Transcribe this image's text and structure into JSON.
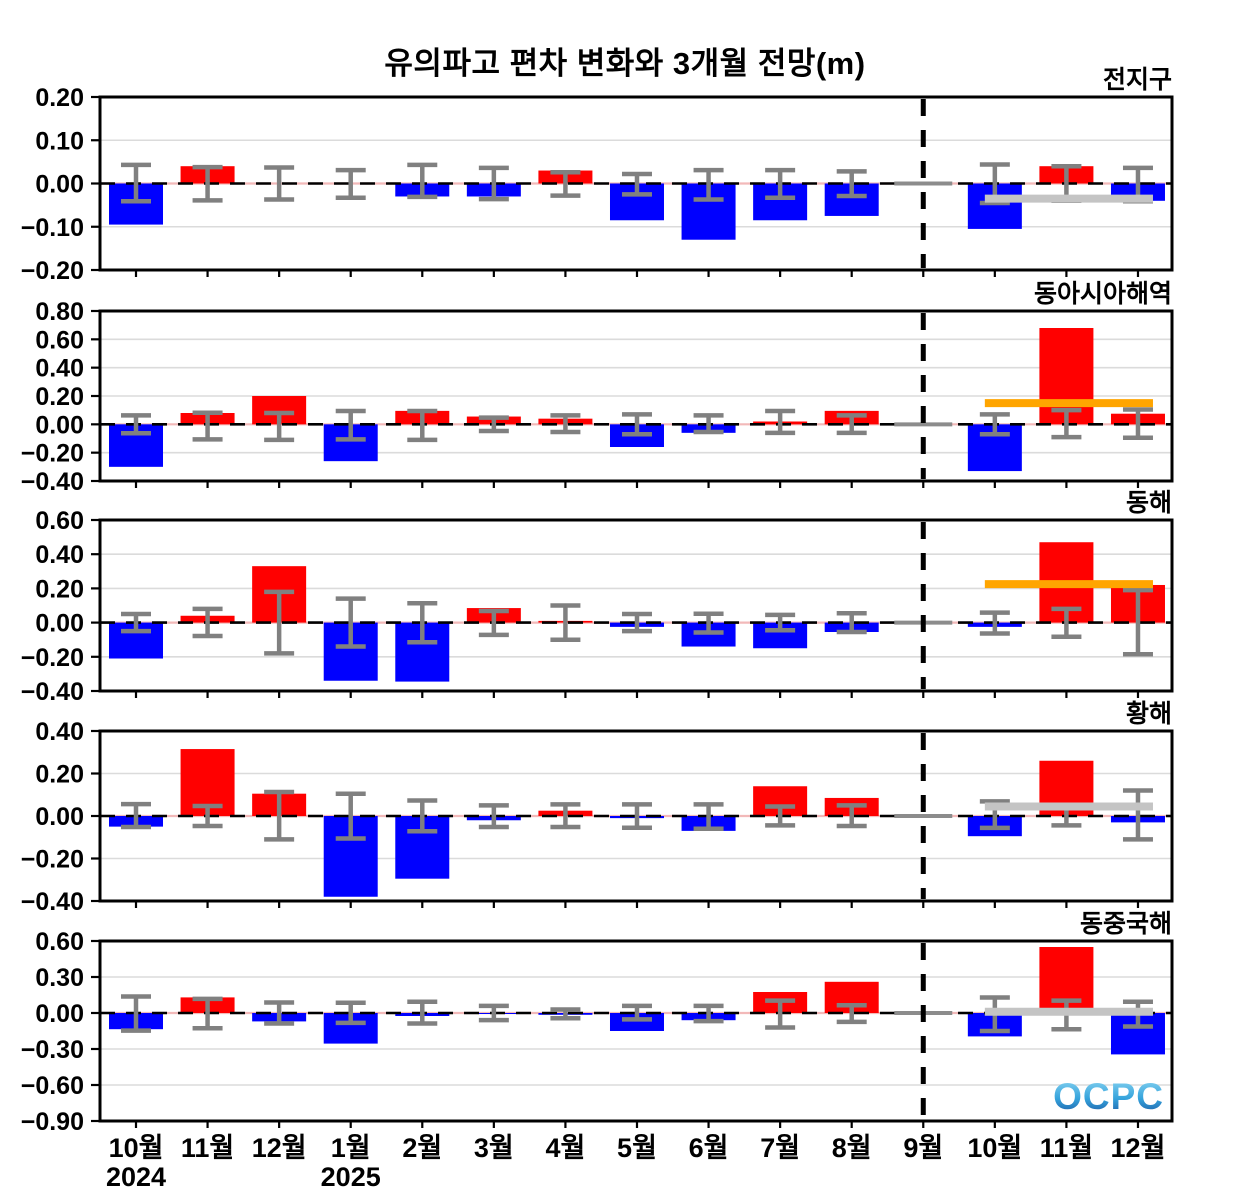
{
  "title": "유의파고 편차 변화와 3개월 전망(m)",
  "logo_text": "OCPC",
  "colors": {
    "positive": "#FF0000",
    "negative": "#0000FF",
    "error_bar": "#808080",
    "zero_marker": "#8C8C8C",
    "divider": "#000000",
    "zero_line_under": "#F2B9B9",
    "grid": "#DBDBDB",
    "axis": "#000000",
    "ref_gray": "#C4C4C4",
    "ref_orange": "#FFA500",
    "logo_top": "#8FD7F2",
    "logo_mid": "#35A3DC",
    "logo_bottom": "#1A55A0"
  },
  "chart_data": {
    "type": "bar",
    "categories": [
      "10월",
      "11월",
      "12월",
      "1월",
      "2월",
      "3월",
      "4월",
      "5월",
      "6월",
      "7월",
      "8월",
      "9월",
      "10월",
      "11월",
      "12월"
    ],
    "year_labels": [
      {
        "text": "2024",
        "month_index": 0
      },
      {
        "text": "2025",
        "month_index": 3
      }
    ],
    "divider_month_index": 11,
    "forecast_month_indices": [
      12,
      13,
      14
    ],
    "legend_position": "none",
    "grid": true,
    "subplots": [
      {
        "title": "전지구",
        "ylim": [
          -0.2,
          0.2
        ],
        "yticks": [
          0.2,
          0.1,
          0.0,
          -0.1,
          -0.2
        ],
        "ytick_labels": [
          "0.20",
          "0.10",
          "0.00",
          "−0.10",
          "−0.20"
        ],
        "values": [
          -0.095,
          0.04,
          0.0,
          0.0,
          -0.03,
          -0.03,
          0.03,
          -0.085,
          -0.13,
          -0.085,
          -0.075,
          0.0,
          -0.105,
          0.04,
          -0.04
        ],
        "err_hi": [
          0.043,
          0.038,
          0.037,
          0.031,
          0.043,
          0.036,
          0.026,
          0.022,
          0.031,
          0.031,
          0.028,
          0,
          0.044,
          0.04,
          0.036
        ],
        "err_lo": [
          0.041,
          0.039,
          0.037,
          0.033,
          0.031,
          0.036,
          0.028,
          0.025,
          0.037,
          0.033,
          0.029,
          0,
          0.045,
          0.04,
          0.041
        ],
        "zero_marker_month_index": 11,
        "ref_line": {
          "value": -0.035,
          "color_key": "ref_gray"
        }
      },
      {
        "title": "동아시아해역",
        "ylim": [
          -0.4,
          0.8
        ],
        "yticks": [
          0.8,
          0.6,
          0.4,
          0.2,
          0.0,
          -0.2,
          -0.4
        ],
        "ytick_labels": [
          "0.80",
          "0.60",
          "0.40",
          "0.20",
          "0.00",
          "−0.20",
          "−0.40"
        ],
        "values": [
          -0.3,
          0.08,
          0.2,
          -0.26,
          0.095,
          0.055,
          0.04,
          -0.16,
          -0.06,
          0.02,
          0.095,
          0.0,
          -0.33,
          0.68,
          0.075
        ],
        "err_hi": [
          0.063,
          0.082,
          0.08,
          0.094,
          0.094,
          0.047,
          0.063,
          0.07,
          0.063,
          0.094,
          0.063,
          0,
          0.07,
          0.1,
          0.105
        ],
        "err_lo": [
          0.063,
          0.106,
          0.11,
          0.106,
          0.11,
          0.047,
          0.054,
          0.07,
          0.054,
          0.06,
          0.06,
          0,
          0.07,
          0.09,
          0.095
        ],
        "zero_marker_month_index": 11,
        "ref_line": {
          "value": 0.15,
          "color_key": "ref_orange"
        }
      },
      {
        "title": "동해",
        "ylim": [
          -0.4,
          0.6
        ],
        "yticks": [
          0.6,
          0.4,
          0.2,
          0.0,
          -0.2,
          -0.4
        ],
        "ytick_labels": [
          "0.60",
          "0.40",
          "0.20",
          "0.00",
          "−0.20",
          "−0.40"
        ],
        "values": [
          -0.21,
          0.04,
          0.33,
          -0.34,
          -0.345,
          0.085,
          0.01,
          -0.025,
          -0.14,
          -0.15,
          -0.055,
          0.0,
          -0.025,
          0.47,
          0.22
        ],
        "err_hi": [
          0.05,
          0.08,
          0.18,
          0.14,
          0.113,
          0.068,
          0.1,
          0.05,
          0.052,
          0.045,
          0.055,
          0,
          0.058,
          0.08,
          0.19
        ],
        "err_lo": [
          0.05,
          0.078,
          0.18,
          0.14,
          0.115,
          0.072,
          0.1,
          0.05,
          0.058,
          0.045,
          0.055,
          0,
          0.064,
          0.083,
          0.185
        ],
        "zero_marker_month_index": 11,
        "ref_line": {
          "value": 0.225,
          "color_key": "ref_orange"
        }
      },
      {
        "title": "황해",
        "ylim": [
          -0.4,
          0.4
        ],
        "yticks": [
          0.4,
          0.2,
          0.0,
          -0.2,
          -0.4
        ],
        "ytick_labels": [
          "0.40",
          "0.20",
          "0.00",
          "−0.20",
          "−0.40"
        ],
        "values": [
          -0.05,
          0.315,
          0.105,
          -0.38,
          -0.295,
          -0.02,
          0.025,
          -0.01,
          -0.07,
          0.14,
          0.085,
          0.0,
          -0.095,
          0.26,
          -0.03
        ],
        "err_hi": [
          0.056,
          0.047,
          0.113,
          0.105,
          0.073,
          0.05,
          0.055,
          0.055,
          0.055,
          0.045,
          0.05,
          0,
          0.069,
          0.042,
          0.12
        ],
        "err_lo": [
          0.052,
          0.047,
          0.11,
          0.106,
          0.072,
          0.052,
          0.052,
          0.055,
          0.06,
          0.044,
          0.047,
          0,
          0.056,
          0.044,
          0.11
        ],
        "zero_marker_month_index": 11,
        "ref_line": {
          "value": 0.045,
          "color_key": "ref_gray"
        }
      },
      {
        "title": "동중국해",
        "ylim": [
          -0.9,
          0.6
        ],
        "yticks": [
          0.6,
          0.3,
          0.0,
          -0.3,
          -0.6,
          -0.9
        ],
        "ytick_labels": [
          "0.60",
          "0.30",
          "0.00",
          "−0.30",
          "−0.60",
          "−0.90"
        ],
        "values": [
          -0.135,
          0.13,
          -0.07,
          -0.255,
          -0.025,
          -0.005,
          -0.015,
          -0.15,
          -0.06,
          0.175,
          0.26,
          0.0,
          -0.195,
          0.55,
          -0.345
        ],
        "err_hi": [
          0.138,
          0.118,
          0.088,
          0.085,
          0.094,
          0.059,
          0.029,
          0.059,
          0.059,
          0.103,
          0.065,
          0,
          0.129,
          0.103,
          0.094
        ],
        "err_lo": [
          0.147,
          0.127,
          0.088,
          0.082,
          0.088,
          0.059,
          0.044,
          0.053,
          0.068,
          0.121,
          0.074,
          0,
          0.15,
          0.135,
          0.112
        ],
        "zero_marker_month_index": 11,
        "ref_line": {
          "value": 0.01,
          "color_key": "ref_gray"
        }
      }
    ]
  }
}
